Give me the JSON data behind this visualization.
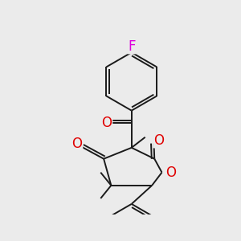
{
  "background_color": "#ebebeb",
  "bond_color": "#1a1a1a",
  "atom_colors": {
    "O": "#e00000",
    "F": "#dd00dd",
    "Br": "#bb7700",
    "C": "#1a1a1a"
  },
  "lw": 1.4,
  "figsize": [
    3.0,
    3.0
  ],
  "dpi": 100
}
